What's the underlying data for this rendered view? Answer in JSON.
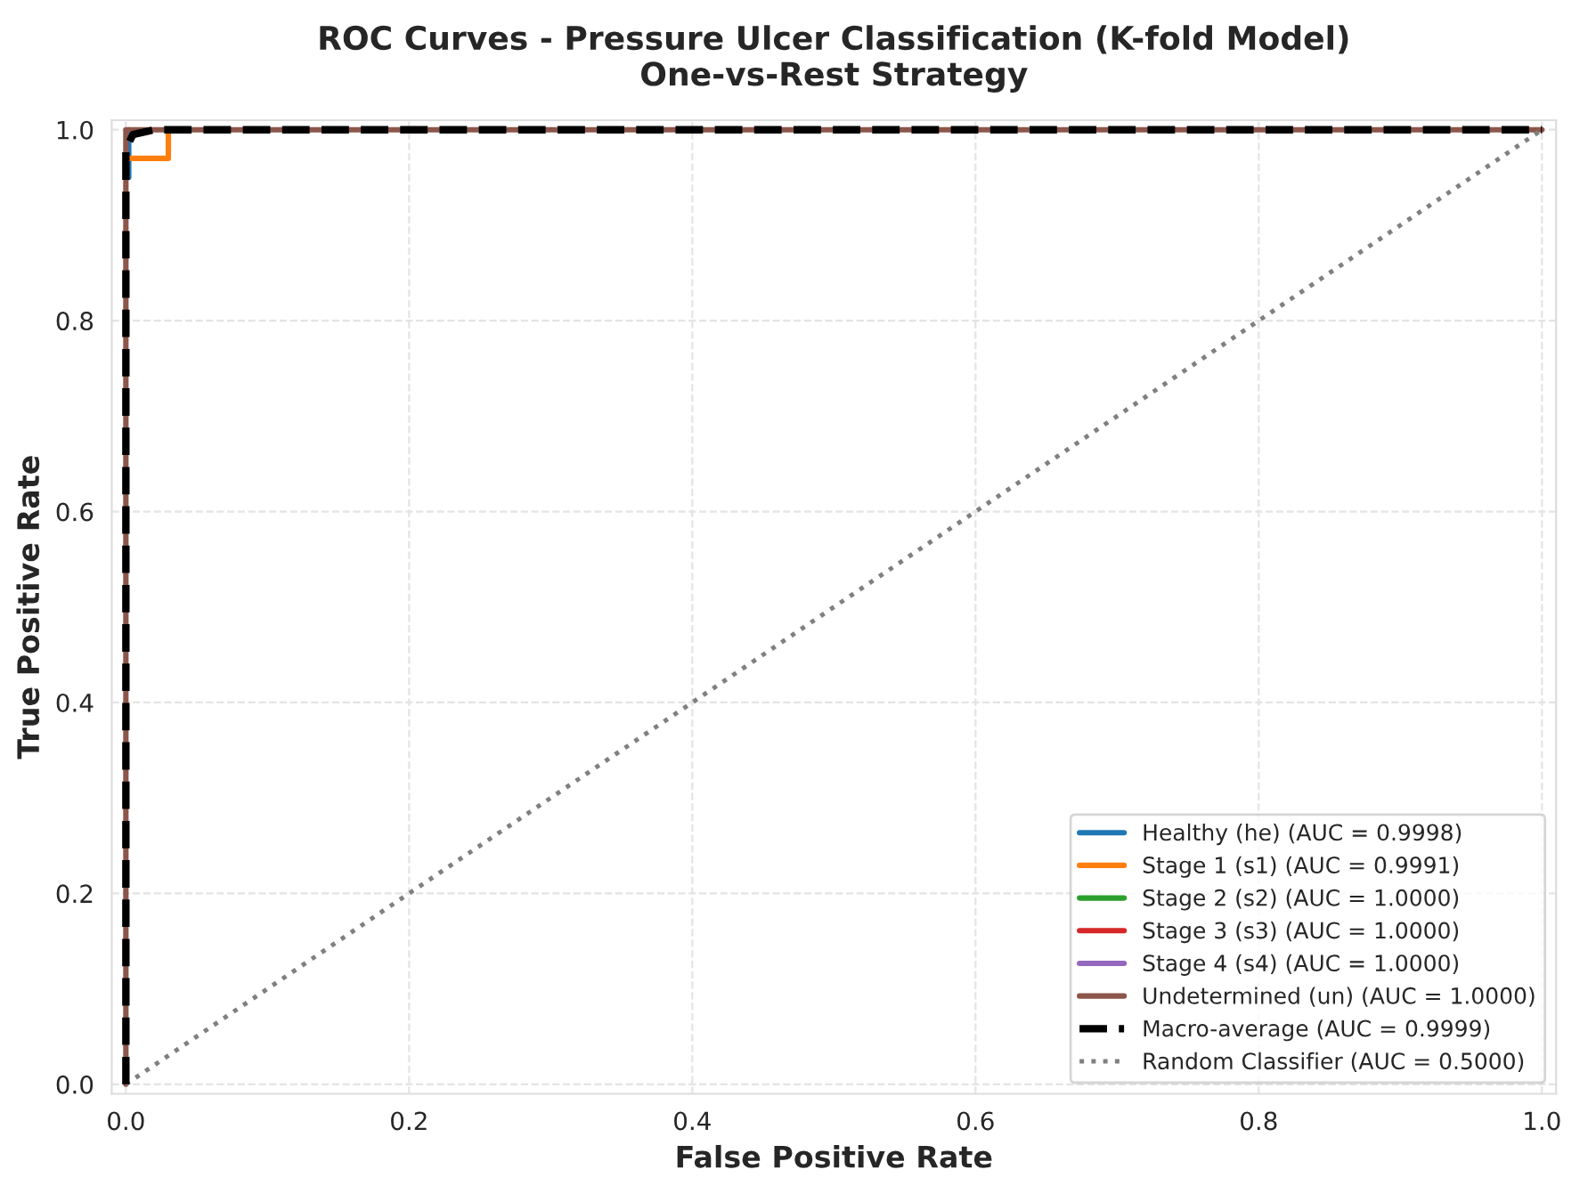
{
  "chart_data": {
    "type": "line",
    "title": "ROC Curves - Pressure Ulcer Classification (K-fold Model)\nOne-vs-Rest Strategy",
    "xlabel": "False Positive Rate",
    "ylabel": "True Positive Rate",
    "xlim": [
      -0.01,
      1.01
    ],
    "ylim": [
      -0.01,
      1.01
    ],
    "xticks": [
      {
        "value": 0,
        "label": "0.0"
      },
      0.2,
      0.4,
      0.6,
      0.8,
      {
        "value": 1,
        "label": "1.0"
      }
    ],
    "yticks": [
      {
        "value": 0,
        "label": "0.0"
      },
      0.2,
      0.4,
      0.6,
      0.8,
      {
        "value": 1,
        "label": "1.0"
      }
    ],
    "grid": true,
    "legend": "bottom right",
    "marker": "none",
    "series": [
      {
        "name": "Healthy (he) (AUC = 0.9998)",
        "color": "#1f77b4",
        "line_style": "solid",
        "x": [
          0,
          0.002,
          0.002
        ],
        "values": [
          0.95,
          0.95,
          1
        ]
      },
      {
        "name": "Stage 1 (s1) (AUC = 0.9991)",
        "color": "#ff7f0e",
        "line_style": "solid",
        "x": [
          0,
          0.03,
          0.03
        ],
        "values": [
          0.97,
          0.97,
          1
        ]
      },
      {
        "name": "Stage 2 (s2) (AUC = 1.0000)",
        "color": "#2ca02c",
        "line_style": "solid"
      },
      {
        "name": "Stage 3 (s3) (AUC = 1.0000)",
        "color": "#d62728",
        "line_style": "solid"
      },
      {
        "name": "Stage 4 (s4) (AUC = 1.0000)",
        "color": "#9467bd",
        "line_style": "solid"
      },
      {
        "name": "Undetermined (un) (AUC = 1.0000)",
        "color": "#8c564b",
        "line_style": "solid",
        "x": [
          0,
          0,
          1
        ],
        "values": [
          0,
          1,
          1
        ]
      },
      {
        "name": "Macro-average (AUC = 0.9999)",
        "color": "#000000",
        "line_style": "dashed",
        "x": [
          0,
          0,
          0.005,
          0.02,
          1
        ],
        "values": [
          0,
          0.98,
          0.995,
          1,
          1
        ]
      },
      {
        "name": "Random Classifier (AUC = 0.5000)",
        "color": "#808080",
        "line_style": "dotted",
        "x": [
          0,
          1
        ],
        "values": [
          0,
          1
        ]
      }
    ]
  }
}
